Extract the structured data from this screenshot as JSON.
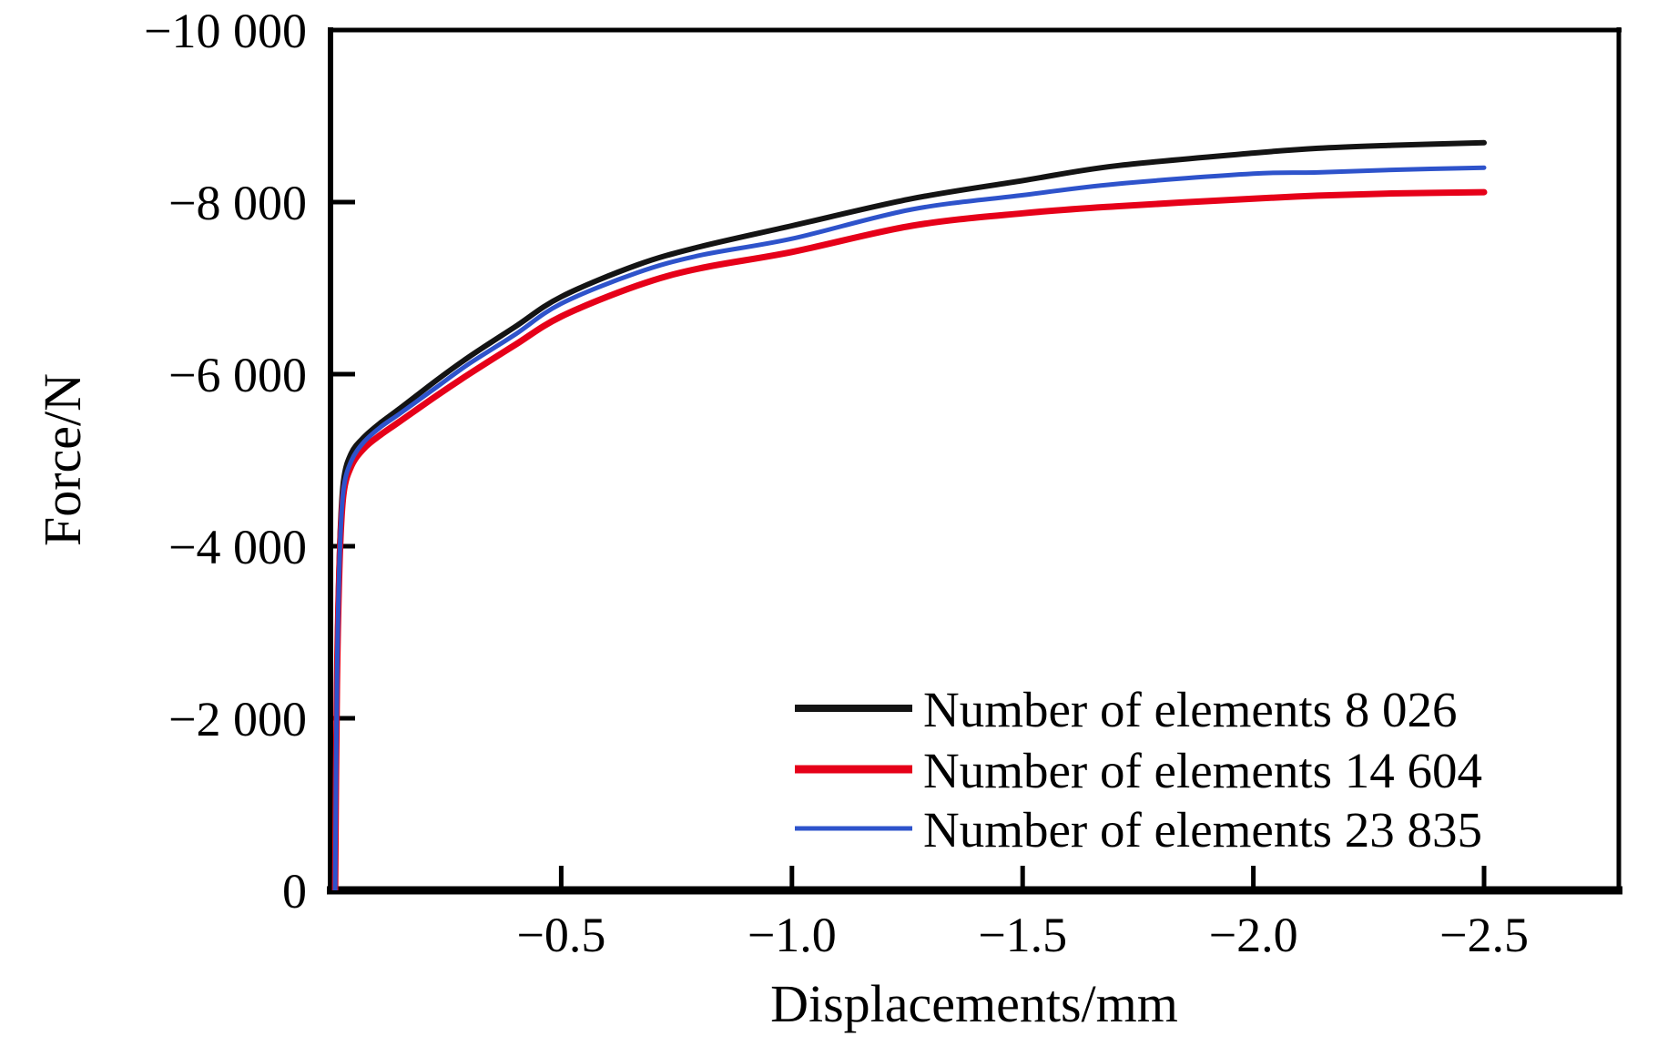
{
  "figure": {
    "background": "#ffffff"
  },
  "chart_data": {
    "type": "line",
    "title": "",
    "xlabel": "Displacements/mm",
    "ylabel": "Force/N",
    "xlim": [
      0,
      -2.79
    ],
    "ylim": [
      0,
      -10000
    ],
    "x_ticks": [
      -0.5,
      -1.0,
      -1.5,
      -2.0,
      -2.5
    ],
    "x_tick_labels": [
      "−0.5",
      "−1.0",
      "−1.5",
      "−2.0",
      "−2.5"
    ],
    "y_ticks": [
      0,
      -2000,
      -4000,
      -6000,
      -8000,
      -10000
    ],
    "y_tick_labels": [
      "0",
      "−2 000",
      "−4 000",
      "−6 000",
      "−8 000",
      "−10 000"
    ],
    "grid": false,
    "legend_position": "inside-lower-right",
    "axis_color": "#000000",
    "x": [
      -0.01,
      -0.014,
      -0.02,
      -0.028,
      -0.045,
      -0.073,
      -0.11,
      -0.15,
      -0.23,
      -0.3,
      -0.4,
      -0.5,
      -0.665,
      -0.8,
      -1.0,
      -1.26,
      -1.5,
      -1.7,
      -2.0,
      -2.14,
      -2.3,
      -2.5
    ],
    "series": [
      {
        "name": "Number of elements 8 026",
        "color": "#141414",
        "y": [
          0,
          -2500,
          -4000,
          -4750,
          -5080,
          -5270,
          -5440,
          -5600,
          -5930,
          -6200,
          -6550,
          -6900,
          -7270,
          -7480,
          -7725,
          -8040,
          -8250,
          -8420,
          -8570,
          -8625,
          -8660,
          -8690
        ]
      },
      {
        "name": "Number of elements 14 604",
        "color": "#e60019",
        "y": [
          0,
          -2400,
          -3850,
          -4600,
          -4930,
          -5140,
          -5300,
          -5450,
          -5750,
          -6000,
          -6340,
          -6670,
          -7030,
          -7230,
          -7420,
          -7725,
          -7870,
          -7950,
          -8040,
          -8075,
          -8100,
          -8115
        ]
      },
      {
        "name": "Number of elements 23 835",
        "color": "#2e53cb",
        "y": [
          0,
          -2450,
          -3900,
          -4650,
          -4990,
          -5215,
          -5390,
          -5540,
          -5850,
          -6120,
          -6460,
          -6820,
          -7180,
          -7380,
          -7575,
          -7915,
          -8080,
          -8210,
          -8330,
          -8345,
          -8375,
          -8400
        ]
      }
    ]
  }
}
